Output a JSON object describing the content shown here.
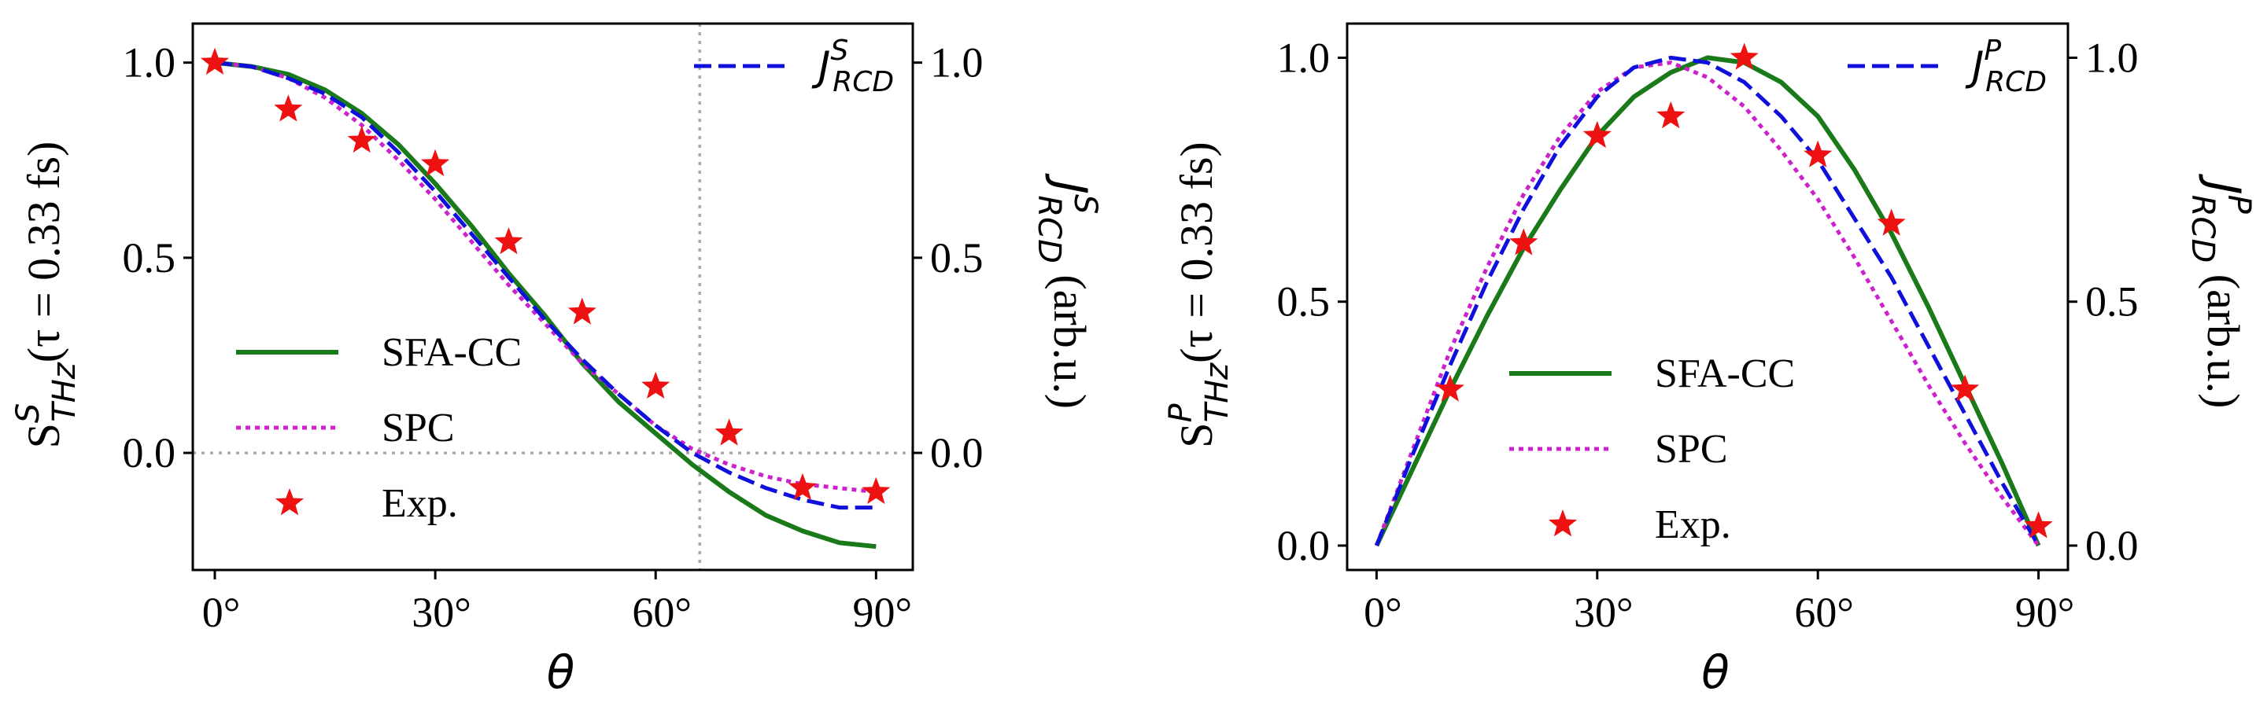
{
  "chart_data": [
    {
      "type": "line",
      "panel": "left",
      "title": "",
      "xlabel": "θ",
      "ylabel": {
        "main": "S",
        "sup": "S",
        "sub": "THz",
        "tail": "(τ = 0.33 fs)"
      },
      "ylabel_right": {
        "main": "J",
        "sup": "S",
        "sub": "RCD",
        "tail": " (arb.u.)"
      },
      "xlim": [
        -3,
        95
      ],
      "ylim": [
        -0.3,
        1.1
      ],
      "ylim_right": [
        -0.3,
        1.1
      ],
      "x_ticks": [
        0,
        30,
        60,
        90
      ],
      "x_tick_labels": [
        "0°",
        "30°",
        "60°",
        "90°"
      ],
      "y_ticks": [
        0.0,
        0.5,
        1.0
      ],
      "y_tick_labels": [
        "0.0",
        "0.5",
        "1.0"
      ],
      "y_right_ticks": [
        0.0,
        0.5,
        1.0
      ],
      "y_right_tick_labels": [
        "0.0",
        "0.5",
        "1.0"
      ],
      "reference_lines": {
        "h": 0.0,
        "v": 66
      },
      "x": [
        0,
        5,
        10,
        15,
        20,
        25,
        30,
        35,
        40,
        45,
        50,
        55,
        60,
        65,
        70,
        75,
        80,
        85,
        90
      ],
      "series": [
        {
          "name": "SFA-CC",
          "style": "solid",
          "color": "#1a7a1a",
          "values": [
            1.0,
            0.99,
            0.97,
            0.93,
            0.87,
            0.79,
            0.69,
            0.58,
            0.46,
            0.35,
            0.23,
            0.13,
            0.05,
            -0.03,
            -0.1,
            -0.16,
            -0.2,
            -0.23,
            -0.24
          ]
        },
        {
          "name": "SPC",
          "style": "dotted",
          "color": "#cc22cc",
          "values": [
            1.0,
            0.99,
            0.96,
            0.91,
            0.84,
            0.75,
            0.65,
            0.54,
            0.43,
            0.33,
            0.23,
            0.15,
            0.07,
            0.01,
            -0.03,
            -0.06,
            -0.08,
            -0.09,
            -0.1
          ]
        },
        {
          "name": "",
          "style": "dashed",
          "color": "#1010dd",
          "axis": "right",
          "values": [
            1.0,
            0.99,
            0.96,
            0.92,
            0.86,
            0.77,
            0.67,
            0.56,
            0.45,
            0.34,
            0.24,
            0.15,
            0.07,
            0.0,
            -0.05,
            -0.09,
            -0.12,
            -0.14,
            -0.14
          ]
        }
      ],
      "points": {
        "name": "Exp.",
        "color": "#ee1111",
        "x": [
          0,
          10,
          20,
          30,
          40,
          50,
          60,
          70,
          80,
          90
        ],
        "y": [
          1.0,
          0.88,
          0.8,
          0.74,
          0.54,
          0.36,
          0.17,
          0.05,
          -0.09,
          -0.1
        ]
      },
      "legend_right": {
        "main": "J",
        "sup": "S",
        "sub": "RCD"
      },
      "legend": [
        "SFA-CC",
        "SPC",
        "Exp."
      ]
    },
    {
      "type": "line",
      "panel": "right",
      "title": "",
      "xlabel": "θ",
      "ylabel": {
        "main": "S",
        "sup": "P",
        "sub": "THz",
        "tail": "(τ = 0.33 fs)"
      },
      "ylabel_right": {
        "main": "J",
        "sup": "P",
        "sub": "RCD",
        "tail": " (arb.u.)"
      },
      "xlim": [
        -4,
        94
      ],
      "ylim": [
        -0.05,
        1.07
      ],
      "ylim_right": [
        -0.05,
        1.07
      ],
      "x_ticks": [
        0,
        30,
        60,
        90
      ],
      "x_tick_labels": [
        "0°",
        "30°",
        "60°",
        "90°"
      ],
      "y_ticks": [
        0.0,
        0.5,
        1.0
      ],
      "y_tick_labels": [
        "0.0",
        "0.5",
        "1.0"
      ],
      "y_right_ticks": [
        0.0,
        0.5,
        1.0
      ],
      "y_right_tick_labels": [
        "0.0",
        "0.5",
        "1.0"
      ],
      "x": [
        0,
        5,
        10,
        15,
        20,
        25,
        30,
        35,
        40,
        45,
        50,
        55,
        60,
        65,
        70,
        75,
        80,
        85,
        90
      ],
      "series": [
        {
          "name": "SFA-CC",
          "style": "solid",
          "color": "#1a7a1a",
          "values": [
            0.0,
            0.16,
            0.32,
            0.47,
            0.61,
            0.73,
            0.84,
            0.92,
            0.97,
            1.0,
            0.99,
            0.95,
            0.88,
            0.77,
            0.64,
            0.49,
            0.33,
            0.17,
            0.0
          ]
        },
        {
          "name": "SPC",
          "style": "dotted",
          "color": "#cc22cc",
          "values": [
            0.0,
            0.2,
            0.4,
            0.57,
            0.72,
            0.84,
            0.93,
            0.98,
            0.99,
            0.96,
            0.9,
            0.81,
            0.71,
            0.59,
            0.46,
            0.33,
            0.21,
            0.1,
            0.0
          ]
        },
        {
          "name": "",
          "style": "dashed",
          "color": "#1010dd",
          "axis": "right",
          "values": [
            0.0,
            0.19,
            0.37,
            0.54,
            0.69,
            0.82,
            0.92,
            0.98,
            1.0,
            0.99,
            0.95,
            0.88,
            0.79,
            0.67,
            0.55,
            0.41,
            0.27,
            0.13,
            0.0
          ]
        }
      ],
      "points": {
        "name": "Exp.",
        "color": "#ee1111",
        "x": [
          10,
          20,
          30,
          40,
          50,
          60,
          70,
          80,
          90
        ],
        "y": [
          0.32,
          0.62,
          0.84,
          0.88,
          1.0,
          0.8,
          0.66,
          0.32,
          0.04
        ]
      },
      "legend_right": {
        "main": "J",
        "sup": "P",
        "sub": "RCD"
      },
      "legend": [
        "SFA-CC",
        "SPC",
        "Exp."
      ]
    }
  ]
}
